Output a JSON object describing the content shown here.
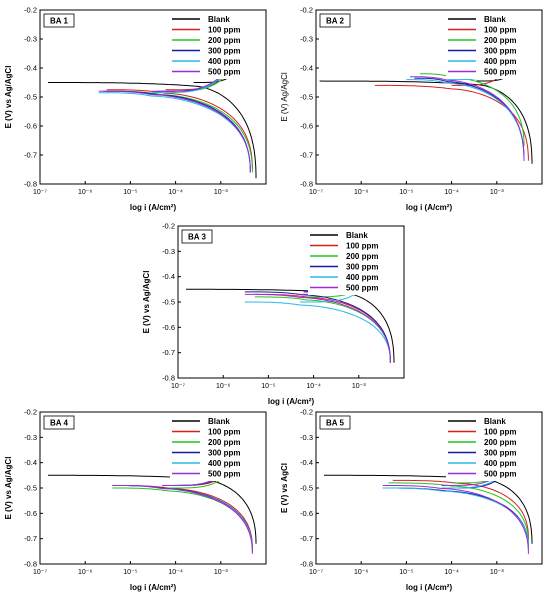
{
  "chart_data": [
    {
      "type": "line",
      "panel_label": "BA 1",
      "xlabel": "log i (A/cm²)",
      "ylabel": "E (V) vs Ag/AgCl",
      "x_scale": "log",
      "xlim": [
        1e-07,
        0.01
      ],
      "ylim": [
        -0.8,
        -0.2
      ],
      "x_tick_labels": [
        "10⁻⁷",
        "10⁻⁶",
        "10⁻⁵",
        "10⁻⁴",
        "10⁻³"
      ],
      "y_tick_labels": [
        "-0.2",
        "-0.3",
        "-0.4",
        "-0.5",
        "-0.6",
        "-0.7",
        "-0.8"
      ],
      "legend_position": "top-right",
      "series": [
        {
          "name": "Blank",
          "color": "#000000",
          "ecorr": -0.45,
          "icorr": 0.00025,
          "start": 1.5e-07,
          "ilim": 0.006,
          "end": -0.78
        },
        {
          "name": "100 ppm",
          "color": "#d62020",
          "ecorr": -0.475,
          "icorr": 6e-05,
          "start": 3e-06,
          "ilim": 0.005,
          "end": -0.75
        },
        {
          "name": "200 ppm",
          "color": "#22c422",
          "ecorr": -0.48,
          "icorr": 5e-05,
          "start": 3e-06,
          "ilim": 0.005,
          "end": -0.76
        },
        {
          "name": "300 ppm",
          "color": "#1a1aa8",
          "ecorr": -0.48,
          "icorr": 4e-05,
          "start": 2.5e-06,
          "ilim": 0.0045,
          "end": -0.76
        },
        {
          "name": "400 ppm",
          "color": "#28b8e8",
          "ecorr": -0.485,
          "icorr": 3e-05,
          "start": 2e-06,
          "ilim": 0.0045,
          "end": -0.76
        },
        {
          "name": "500 ppm",
          "color": "#9c2cd6",
          "ecorr": -0.48,
          "icorr": 3e-05,
          "start": 2e-06,
          "ilim": 0.0045,
          "end": -0.76
        }
      ]
    },
    {
      "type": "line",
      "panel_label": "BA 2",
      "xlabel": "log i (A/cm²)",
      "ylabel": "E (V) Ag/AgCl",
      "x_scale": "log",
      "xlim": [
        1e-07,
        0.01
      ],
      "ylim": [
        -0.8,
        -0.2
      ],
      "x_tick_labels": [
        "10⁻⁷",
        "10⁻⁶",
        "10⁻⁵",
        "10⁻⁴",
        "10⁻³"
      ],
      "y_tick_labels": [
        "-0.2",
        "-0.3",
        "-0.4",
        "-0.5",
        "-0.6",
        "-0.7",
        "-0.8"
      ],
      "legend_position": "top-right",
      "series": [
        {
          "name": "Blank",
          "color": "#000000",
          "ecorr": -0.445,
          "icorr": 0.00035,
          "start": 1.2e-07,
          "ilim": 0.006,
          "end": -0.73
        },
        {
          "name": "100 ppm",
          "color": "#d62020",
          "ecorr": -0.46,
          "icorr": 0.0001,
          "start": 2e-06,
          "ilim": 0.005,
          "end": -0.72
        },
        {
          "name": "200 ppm",
          "color": "#22c422",
          "ecorr": -0.42,
          "icorr": 0.0001,
          "start": 2e-05,
          "ilim": 0.004,
          "end": -0.67
        },
        {
          "name": "300 ppm",
          "color": "#1a1aa8",
          "ecorr": -0.435,
          "icorr": 8e-05,
          "start": 1.5e-05,
          "ilim": 0.004,
          "end": -0.72
        },
        {
          "name": "400 ppm",
          "color": "#28b8e8",
          "ecorr": -0.44,
          "icorr": 8e-05,
          "start": 1e-05,
          "ilim": 0.004,
          "end": -0.72
        },
        {
          "name": "500 ppm",
          "color": "#9c2cd6",
          "ecorr": -0.43,
          "icorr": 8e-05,
          "start": 1.2e-05,
          "ilim": 0.004,
          "end": -0.72
        }
      ]
    },
    {
      "type": "line",
      "panel_label": "BA 3",
      "xlabel": "log i (A/cm²)",
      "ylabel": "E (V) vs Ag/AgCl",
      "x_scale": "log",
      "xlim": [
        1e-07,
        0.01
      ],
      "ylim": [
        -0.8,
        -0.2
      ],
      "x_tick_labels": [
        "10⁻⁷",
        "10⁻⁶",
        "10⁻⁵",
        "10⁻⁴",
        "10⁻³"
      ],
      "y_tick_labels": [
        "-0.2",
        "-0.3",
        "-0.4",
        "-0.5",
        "-0.6",
        "-0.7",
        "-0.8"
      ],
      "legend_position": "top-right",
      "series": [
        {
          "name": "Blank",
          "color": "#000000",
          "ecorr": -0.45,
          "icorr": 0.0004,
          "start": 1.5e-07,
          "ilim": 0.006,
          "end": -0.74
        },
        {
          "name": "100 ppm",
          "color": "#d62020",
          "ecorr": -0.47,
          "icorr": 8e-05,
          "start": 5e-06,
          "ilim": 0.005,
          "end": -0.74
        },
        {
          "name": "200 ppm",
          "color": "#22c422",
          "ecorr": -0.48,
          "icorr": 7e-05,
          "start": 5e-06,
          "ilim": 0.005,
          "end": -0.74
        },
        {
          "name": "300 ppm",
          "color": "#1a1aa8",
          "ecorr": -0.46,
          "icorr": 6e-05,
          "start": 3e-06,
          "ilim": 0.005,
          "end": -0.74
        },
        {
          "name": "400 ppm",
          "color": "#28b8e8",
          "ecorr": -0.5,
          "icorr": 5e-05,
          "start": 3e-06,
          "ilim": 0.005,
          "end": -0.74
        },
        {
          "name": "500 ppm",
          "color": "#9c2cd6",
          "ecorr": -0.47,
          "icorr": 5e-05,
          "start": 3e-06,
          "ilim": 0.005,
          "end": -0.74
        }
      ]
    },
    {
      "type": "line",
      "panel_label": "BA 4",
      "xlabel": "log i (A/cm²)",
      "ylabel": "E (V) vs Ag/AgCl",
      "x_scale": "log",
      "xlim": [
        1e-07,
        0.01
      ],
      "ylim": [
        -0.8,
        -0.2
      ],
      "x_tick_labels": [
        "10⁻⁷",
        "10⁻⁶",
        "10⁻⁵",
        "10⁻⁴",
        "10⁻³"
      ],
      "y_tick_labels": [
        "-0.2",
        "-0.3",
        "-0.4",
        "-0.5",
        "-0.6",
        "-0.7",
        "-0.8"
      ],
      "legend_position": "top-right",
      "series": [
        {
          "name": "Blank",
          "color": "#000000",
          "ecorr": -0.45,
          "icorr": 0.0003,
          "start": 1.5e-07,
          "ilim": 0.006,
          "end": -0.72
        },
        {
          "name": "100 ppm",
          "color": "#d62020",
          "ecorr": -0.49,
          "icorr": 8e-05,
          "start": 4e-06,
          "ilim": 0.005,
          "end": -0.74
        },
        {
          "name": "200 ppm",
          "color": "#22c422",
          "ecorr": -0.5,
          "icorr": 7e-05,
          "start": 4e-06,
          "ilim": 0.005,
          "end": -0.75
        },
        {
          "name": "300 ppm",
          "color": "#1a1aa8",
          "ecorr": -0.49,
          "icorr": 6e-05,
          "start": 4e-06,
          "ilim": 0.005,
          "end": -0.75
        },
        {
          "name": "400 ppm",
          "color": "#28b8e8",
          "ecorr": -0.49,
          "icorr": 5e-05,
          "start": 4e-06,
          "ilim": 0.005,
          "end": -0.75
        },
        {
          "name": "500 ppm",
          "color": "#9c2cd6",
          "ecorr": -0.49,
          "icorr": 5e-05,
          "start": 4e-06,
          "ilim": 0.005,
          "end": -0.76
        }
      ]
    },
    {
      "type": "line",
      "panel_label": "BA 5",
      "xlabel": "log i (A/cm²)",
      "ylabel": "E (V) vs AgCl",
      "x_scale": "log",
      "xlim": [
        1e-07,
        0.01
      ],
      "ylim": [
        -0.8,
        -0.2
      ],
      "x_tick_labels": [
        "10⁻⁷",
        "10⁻⁶",
        "10⁻⁵",
        "10⁻⁴",
        "10⁻³"
      ],
      "y_tick_labels": [
        "-0.2",
        "-0.3",
        "-0.4",
        "-0.5",
        "-0.6",
        "-0.7",
        "-0.8"
      ],
      "legend_position": "top-right",
      "series": [
        {
          "name": "Blank",
          "color": "#000000",
          "ecorr": -0.45,
          "icorr": 0.0004,
          "start": 1.5e-07,
          "ilim": 0.006,
          "end": -0.72
        },
        {
          "name": "100 ppm",
          "color": "#d62020",
          "ecorr": -0.47,
          "icorr": 0.00015,
          "start": 5e-06,
          "ilim": 0.005,
          "end": -0.7
        },
        {
          "name": "200 ppm",
          "color": "#22c422",
          "ecorr": -0.48,
          "icorr": 0.0001,
          "start": 4e-06,
          "ilim": 0.005,
          "end": -0.72
        },
        {
          "name": "300 ppm",
          "color": "#1a1aa8",
          "ecorr": -0.5,
          "icorr": 8e-05,
          "start": 3e-06,
          "ilim": 0.005,
          "end": -0.74
        },
        {
          "name": "400 ppm",
          "color": "#28b8e8",
          "ecorr": -0.5,
          "icorr": 6e-05,
          "start": 3e-06,
          "ilim": 0.005,
          "end": -0.74
        },
        {
          "name": "500 ppm",
          "color": "#9c2cd6",
          "ecorr": -0.49,
          "icorr": 6e-05,
          "start": 3e-06,
          "ilim": 0.005,
          "end": -0.76
        }
      ]
    }
  ]
}
